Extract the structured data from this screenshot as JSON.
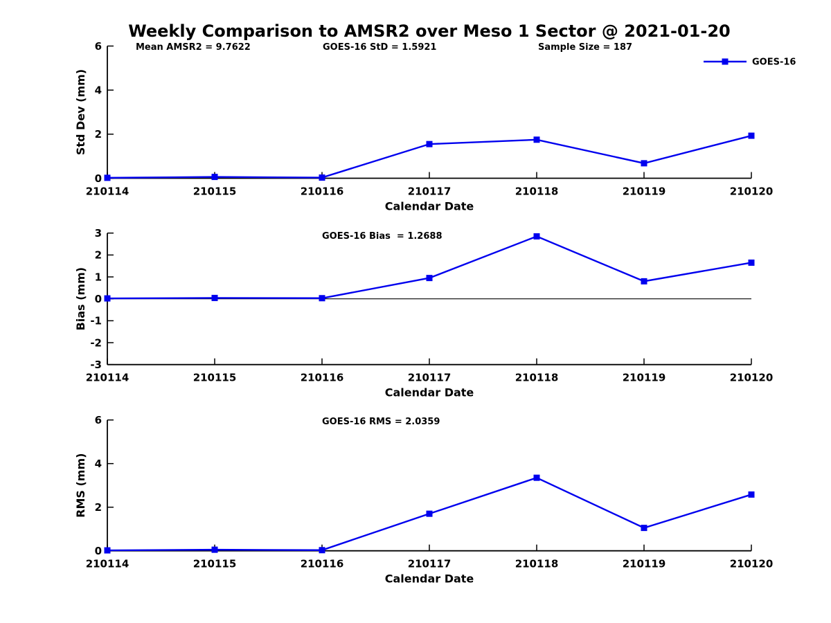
{
  "figure": {
    "title": "Weekly Comparison to AMSR2 over Meso 1 Sector @ 2021-01-20",
    "background_color": "#FFFFFF",
    "axis_color": "#000000",
    "line_color": "#0000EE"
  },
  "chart_data": [
    {
      "type": "line",
      "panel": "Std Dev",
      "xlabel": "Calendar Date",
      "ylabel": "Std Dev (mm)",
      "ylim": [
        0,
        6
      ],
      "yticks": [
        0,
        2,
        4,
        6
      ],
      "x": [
        "210114",
        "210115",
        "210116",
        "210117",
        "210118",
        "210119",
        "210120"
      ],
      "series": [
        {
          "name": "GOES-16",
          "color": "#0000EE",
          "marker": "filled-square",
          "values": [
            0.02,
            0.06,
            0.03,
            1.55,
            1.75,
            0.68,
            1.93
          ]
        }
      ],
      "annotations": [
        "Mean AMSR2 = 9.7622",
        "GOES-16 StD = 1.5921",
        "Sample Size = 187"
      ],
      "legend": {
        "entries": [
          "GOES-16"
        ],
        "position": "top-right"
      },
      "grid": false
    },
    {
      "type": "line",
      "panel": "Bias",
      "xlabel": "Calendar Date",
      "ylabel": "Bias (mm)",
      "ylim": [
        -3,
        3
      ],
      "yticks": [
        3,
        2,
        1,
        0,
        -1,
        -2,
        -3
      ],
      "zero_line": true,
      "x": [
        "210114",
        "210115",
        "210116",
        "210117",
        "210118",
        "210119",
        "210120"
      ],
      "series": [
        {
          "name": "GOES-16",
          "color": "#0000EE",
          "marker": "filled-square",
          "values": [
            0.02,
            0.04,
            0.03,
            0.95,
            2.85,
            0.8,
            1.65
          ]
        }
      ],
      "annotations": [
        "GOES-16 Bias  = 1.2688"
      ],
      "grid": false
    },
    {
      "type": "line",
      "panel": "RMS",
      "xlabel": "Calendar Date",
      "ylabel": "RMS (mm)",
      "ylim": [
        0,
        6
      ],
      "yticks": [
        0,
        2,
        4,
        6
      ],
      "x": [
        "210114",
        "210115",
        "210116",
        "210117",
        "210118",
        "210119",
        "210120"
      ],
      "series": [
        {
          "name": "GOES-16",
          "color": "#0000EE",
          "marker": "filled-square",
          "values": [
            0.02,
            0.05,
            0.03,
            1.7,
            3.35,
            1.05,
            2.58
          ]
        }
      ],
      "annotations": [
        "GOES-16 RMS = 2.0359"
      ],
      "grid": false
    }
  ]
}
